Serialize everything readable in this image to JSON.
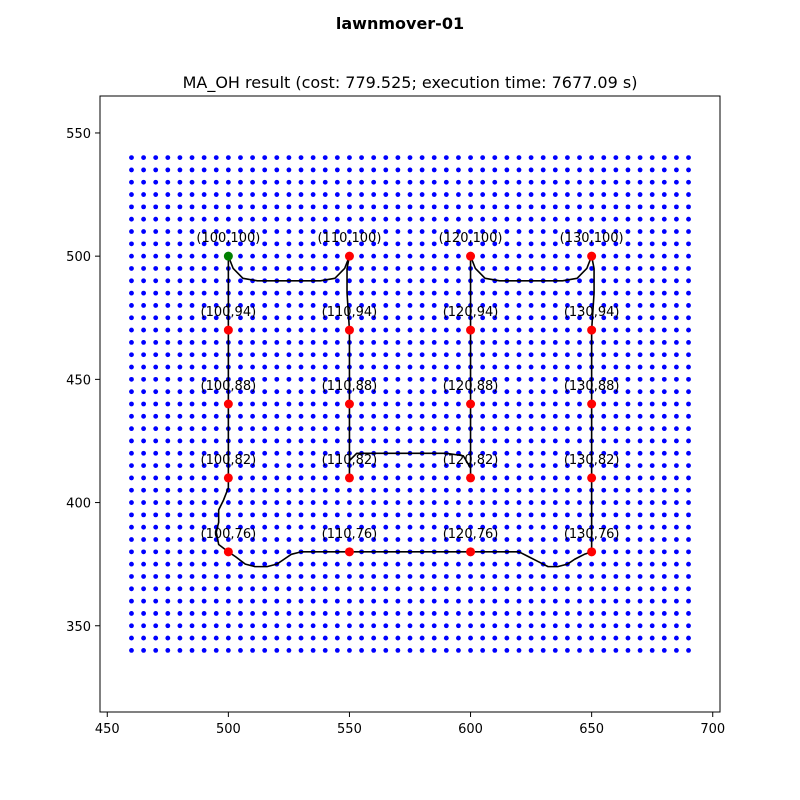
{
  "figure_title": "lawnmover-01",
  "chart_data": {
    "type": "scatter",
    "title": "MA_OH result (cost: 779.525; execution time: 7677.09 s)",
    "xlabel": "",
    "ylabel": "",
    "xlim": [
      447,
      703
    ],
    "ylim": [
      315,
      565
    ],
    "xticks": [
      450,
      500,
      550,
      600,
      650,
      700
    ],
    "yticks": [
      350,
      400,
      450,
      500,
      550
    ],
    "grid": false,
    "background_grid": {
      "x_start": 460,
      "x_end": 690,
      "x_step": 5,
      "y_start": 340,
      "y_end": 540,
      "y_step": 5,
      "color": "#0000ff"
    },
    "waypoints": [
      {
        "label": "(100,100)",
        "x": 500,
        "y": 500,
        "color": "#008000"
      },
      {
        "label": "(110,100)",
        "x": 550,
        "y": 500,
        "color": "#ff0000"
      },
      {
        "label": "(120,100)",
        "x": 600,
        "y": 500,
        "color": "#ff0000"
      },
      {
        "label": "(130,100)",
        "x": 650,
        "y": 500,
        "color": "#ff0000"
      },
      {
        "label": "(100,94)",
        "x": 500,
        "y": 470,
        "color": "#ff0000"
      },
      {
        "label": "(110,94)",
        "x": 550,
        "y": 470,
        "color": "#ff0000"
      },
      {
        "label": "(120,94)",
        "x": 600,
        "y": 470,
        "color": "#ff0000"
      },
      {
        "label": "(130,94)",
        "x": 650,
        "y": 470,
        "color": "#ff0000"
      },
      {
        "label": "(100,88)",
        "x": 500,
        "y": 440,
        "color": "#ff0000"
      },
      {
        "label": "(110,88)",
        "x": 550,
        "y": 440,
        "color": "#ff0000"
      },
      {
        "label": "(120,88)",
        "x": 600,
        "y": 440,
        "color": "#ff0000"
      },
      {
        "label": "(130,88)",
        "x": 650,
        "y": 440,
        "color": "#ff0000"
      },
      {
        "label": "(100,82)",
        "x": 500,
        "y": 410,
        "color": "#ff0000"
      },
      {
        "label": "(110,82)",
        "x": 550,
        "y": 410,
        "color": "#ff0000"
      },
      {
        "label": "(120,82)",
        "x": 600,
        "y": 410,
        "color": "#ff0000"
      },
      {
        "label": "(130,82)",
        "x": 650,
        "y": 410,
        "color": "#ff0000"
      },
      {
        "label": "(100,76)",
        "x": 500,
        "y": 380,
        "color": "#ff0000"
      },
      {
        "label": "(110,76)",
        "x": 550,
        "y": 380,
        "color": "#ff0000"
      },
      {
        "label": "(120,76)",
        "x": 600,
        "y": 380,
        "color": "#ff0000"
      },
      {
        "label": "(130,76)",
        "x": 650,
        "y": 380,
        "color": "#ff0000"
      }
    ],
    "path": {
      "color": "#000000",
      "points": [
        [
          500,
          500
        ],
        [
          502,
          495
        ],
        [
          506,
          491
        ],
        [
          512,
          490
        ],
        [
          520,
          490
        ],
        [
          530,
          490
        ],
        [
          538,
          490
        ],
        [
          544,
          491
        ],
        [
          548,
          495
        ],
        [
          550,
          500
        ],
        [
          549,
          495
        ],
        [
          549,
          485
        ],
        [
          550,
          470
        ],
        [
          550,
          455
        ],
        [
          550,
          440
        ],
        [
          550,
          425
        ],
        [
          550,
          410
        ],
        [
          550,
          417
        ],
        [
          553,
          420
        ],
        [
          560,
          420
        ],
        [
          575,
          420
        ],
        [
          590,
          420
        ],
        [
          597,
          419
        ],
        [
          600,
          414
        ],
        [
          600,
          410
        ],
        [
          600,
          425
        ],
        [
          600,
          440
        ],
        [
          600,
          455
        ],
        [
          600,
          470
        ],
        [
          600,
          485
        ],
        [
          600,
          500
        ],
        [
          602,
          495
        ],
        [
          606,
          491
        ],
        [
          612,
          490
        ],
        [
          625,
          490
        ],
        [
          638,
          490
        ],
        [
          644,
          491
        ],
        [
          648,
          495
        ],
        [
          650,
          500
        ],
        [
          651,
          495
        ],
        [
          651,
          485
        ],
        [
          650,
          470
        ],
        [
          650,
          455
        ],
        [
          650,
          440
        ],
        [
          650,
          425
        ],
        [
          650,
          410
        ],
        [
          650,
          400
        ],
        [
          650,
          390
        ],
        [
          650,
          380
        ],
        [
          647,
          379
        ],
        [
          643,
          377
        ],
        [
          640,
          375
        ],
        [
          636,
          374
        ],
        [
          632,
          374
        ],
        [
          628,
          376
        ],
        [
          624,
          378
        ],
        [
          620,
          380
        ],
        [
          610,
          380
        ],
        [
          600,
          380
        ],
        [
          585,
          380
        ],
        [
          570,
          380
        ],
        [
          560,
          380
        ],
        [
          550,
          380
        ],
        [
          540,
          380
        ],
        [
          530,
          380
        ],
        [
          526,
          379
        ],
        [
          523,
          377
        ],
        [
          520,
          375
        ],
        [
          516,
          374
        ],
        [
          511,
          374
        ],
        [
          507,
          375
        ],
        [
          503,
          378
        ],
        [
          500,
          380
        ],
        [
          496,
          383
        ],
        [
          495,
          388
        ],
        [
          496,
          392
        ],
        [
          496,
          397
        ],
        [
          498,
          401
        ],
        [
          500,
          406
        ],
        [
          500,
          410
        ],
        [
          500,
          420
        ],
        [
          500,
          430
        ],
        [
          500,
          440
        ],
        [
          500,
          455
        ],
        [
          500,
          470
        ],
        [
          500,
          485
        ],
        [
          500,
          500
        ]
      ]
    }
  }
}
